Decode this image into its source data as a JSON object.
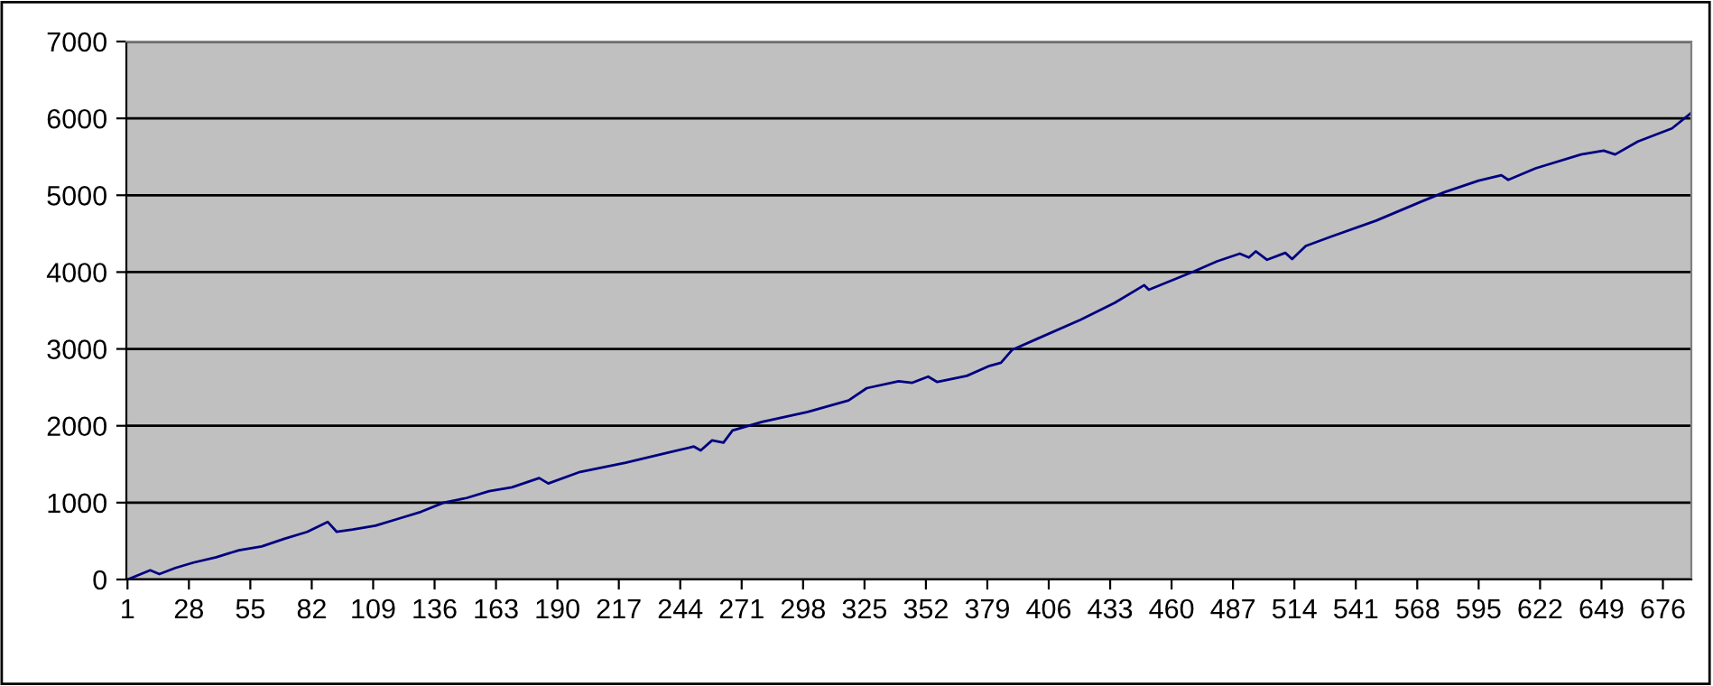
{
  "chart_data": {
    "type": "line",
    "x": [
      1,
      11,
      15,
      22,
      30,
      40,
      50,
      60,
      70,
      80,
      89,
      93,
      100,
      110,
      120,
      130,
      140,
      150,
      160,
      170,
      182,
      186,
      200,
      220,
      240,
      250,
      253,
      258,
      263,
      267,
      280,
      300,
      318,
      326,
      340,
      346,
      353,
      357,
      370,
      380,
      385,
      390,
      400,
      420,
      435,
      448,
      450,
      470,
      480,
      490,
      494,
      497,
      502,
      510,
      513,
      519,
      530,
      550,
      570,
      580,
      595,
      605,
      608,
      620,
      640,
      650,
      655,
      665,
      680,
      688
    ],
    "series": [
      {
        "color": "#000080",
        "values": [
          0,
          120,
          70,
          150,
          220,
          290,
          380,
          430,
          530,
          620,
          750,
          620,
          650,
          700,
          790,
          880,
          1000,
          1060,
          1150,
          1200,
          1320,
          1250,
          1400,
          1520,
          1660,
          1730,
          1680,
          1810,
          1780,
          1940,
          2050,
          2180,
          2330,
          2490,
          2580,
          2560,
          2640,
          2570,
          2650,
          2780,
          2820,
          2990,
          3120,
          3380,
          3600,
          3830,
          3770,
          4010,
          4140,
          4240,
          4190,
          4270,
          4160,
          4250,
          4170,
          4340,
          4460,
          4670,
          4920,
          5040,
          5190,
          5260,
          5200,
          5350,
          5530,
          5580,
          5530,
          5700,
          5870,
          6060
        ]
      }
    ],
    "xlim": [
      0.5,
      688.5
    ],
    "xticks": [
      1,
      28,
      55,
      82,
      109,
      136,
      163,
      190,
      217,
      244,
      271,
      298,
      325,
      352,
      379,
      406,
      433,
      460,
      487,
      514,
      541,
      568,
      595,
      622,
      649,
      676
    ],
    "ylim": [
      0,
      7000
    ],
    "yticks": [
      0,
      1000,
      2000,
      3000,
      4000,
      5000,
      6000,
      7000
    ],
    "grid": "y",
    "marker": "none",
    "line_style": "solid"
  }
}
